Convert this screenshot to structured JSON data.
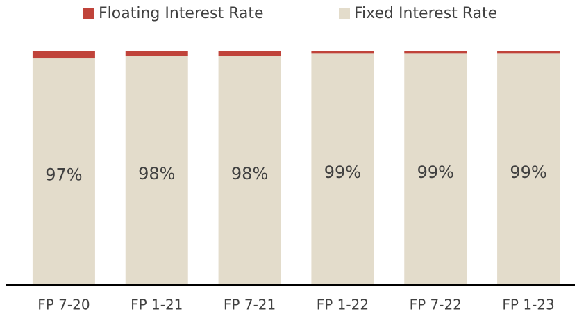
{
  "chart_data": {
    "type": "stacked_bar",
    "categories": [
      "FP 7-20",
      "FP 1-21",
      "FP 7-21",
      "FP 1-22",
      "FP 7-22",
      "FP 1-23"
    ],
    "series": [
      {
        "name": "Floating Interest Rate",
        "color": "#c0433a",
        "values": [
          3,
          2,
          2,
          1,
          1,
          1
        ]
      },
      {
        "name": "Fixed Interest Rate",
        "color": "#e3dccb",
        "values": [
          97,
          98,
          98,
          99,
          99,
          99
        ],
        "value_labels": [
          "97%",
          "98%",
          "98%",
          "99%",
          "99%",
          "99%"
        ]
      }
    ],
    "ylim": [
      0,
      100
    ],
    "legend": "top"
  }
}
